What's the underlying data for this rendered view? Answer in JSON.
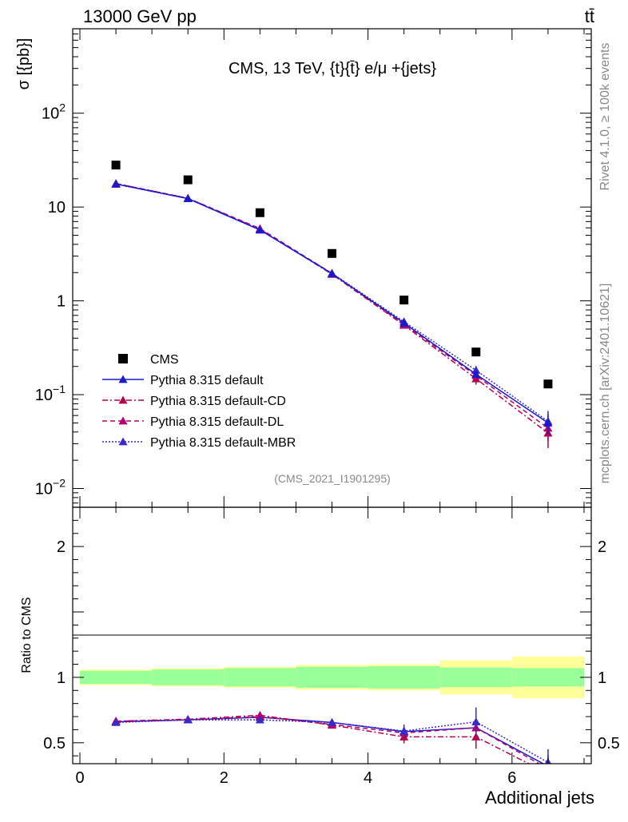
{
  "header": {
    "energy_label": "13000 GeV pp",
    "process_label": "tt̄",
    "side_rivet": "Rivet 4.1.0, ≥ 100k events",
    "side_mcplots": "mcplots.cern.ch [arXiv:2401.10621]"
  },
  "chart_data": [
    {
      "type": "line",
      "title": "CMS, 13 TeV, {t}{t̄} e/μ +{jets}",
      "analysis_id": "(CMS_2021_I1901295)",
      "ylabel": "σ [{pb}]",
      "xlabel": "Additional jets",
      "xlim": [
        -0.1,
        7.1
      ],
      "ylim_log10": [
        -2.2,
        2.9
      ],
      "yscale": "log",
      "y_ticks": [
        {
          "label": "10^-2",
          "base": "10",
          "exp": "−2",
          "value": 0.01
        },
        {
          "label": "10^-1",
          "base": "10",
          "exp": "−1",
          "value": 0.1
        },
        {
          "label": "1",
          "base": "1",
          "exp": "",
          "value": 1
        },
        {
          "label": "10",
          "base": "10",
          "exp": "",
          "value": 10
        },
        {
          "label": "10^2",
          "base": "10",
          "exp": "2",
          "value": 100
        }
      ],
      "x": [
        0.5,
        1.5,
        2.5,
        3.5,
        4.5,
        5.5,
        6.5
      ],
      "legend_position": "lower-left",
      "series": [
        {
          "name": "CMS",
          "marker": "square",
          "color": "#000000",
          "values": [
            28.0,
            19.5,
            8.7,
            3.2,
            1.02,
            0.285,
            0.13
          ]
        },
        {
          "name": "Pythia 8.315 default",
          "marker": "triangle",
          "line": "solid",
          "color": "#1a1acc",
          "values": [
            17.6,
            12.3,
            5.7,
            1.95,
            0.58,
            0.165,
            0.05
          ],
          "err": [
            0.3,
            0.2,
            0.12,
            0.05,
            0.03,
            0.015,
            0.012
          ]
        },
        {
          "name": "Pythia 8.315 default-CD",
          "marker": "triangle",
          "line": "dashdot",
          "color": "#b4004b",
          "values": [
            17.8,
            12.4,
            5.8,
            1.92,
            0.55,
            0.148,
            0.039
          ],
          "err": [
            0.3,
            0.2,
            0.12,
            0.05,
            0.03,
            0.02,
            0.012
          ]
        },
        {
          "name": "Pythia 8.315 default-DL",
          "marker": "triangle",
          "line": "dashed",
          "color": "#b4006e",
          "values": [
            17.8,
            12.4,
            5.9,
            1.96,
            0.56,
            0.16,
            0.044
          ],
          "err": [
            0.3,
            0.2,
            0.12,
            0.05,
            0.03,
            0.017,
            0.012
          ]
        },
        {
          "name": "Pythia 8.315 default-MBR",
          "marker": "triangle",
          "line": "dotted",
          "color": "#3a2acc",
          "values": [
            17.5,
            12.3,
            5.7,
            1.97,
            0.6,
            0.182,
            0.052
          ],
          "err": [
            0.3,
            0.2,
            0.12,
            0.05,
            0.03,
            0.02,
            0.015
          ]
        }
      ]
    },
    {
      "type": "line",
      "ylabel": "Ratio to CMS",
      "xlabel": "Additional jets",
      "xlim": [
        -0.1,
        7.1
      ],
      "ylim": [
        0.34,
        2.3
      ],
      "y_ticks": [
        0.5,
        1,
        2
      ],
      "x_ticks": [
        0,
        2,
        4,
        6
      ],
      "bins": [
        [
          0,
          1
        ],
        [
          1,
          2
        ],
        [
          2,
          3
        ],
        [
          3,
          4
        ],
        [
          4,
          5
        ],
        [
          5,
          6
        ],
        [
          6,
          7
        ]
      ],
      "band_inner": [
        0.05,
        0.06,
        0.07,
        0.08,
        0.085,
        0.075,
        0.07
      ],
      "band_outer": [
        0.06,
        0.07,
        0.08,
        0.095,
        0.1,
        0.13,
        0.16
      ],
      "x": [
        0.5,
        1.5,
        2.5,
        3.5,
        4.5,
        5.5,
        6.5
      ],
      "series": [
        {
          "name": "Pythia 8.315 default",
          "color": "#1a1acc",
          "line": "solid",
          "values": [
            0.66,
            0.675,
            0.695,
            0.655,
            0.585,
            0.615,
            0.32
          ],
          "err": [
            0.012,
            0.012,
            0.015,
            0.02,
            0.04,
            0.06,
            0.09
          ]
        },
        {
          "name": "Pythia 8.315 default-CD",
          "color": "#b4004b",
          "line": "dashdot",
          "values": [
            0.665,
            0.68,
            0.71,
            0.635,
            0.545,
            0.545,
            0.265
          ],
          "err": [
            0.012,
            0.012,
            0.015,
            0.025,
            0.05,
            0.09,
            0.09
          ]
        },
        {
          "name": "Pythia 8.315 default-DL",
          "color": "#b4006e",
          "line": "dashed",
          "values": [
            0.665,
            0.675,
            0.7,
            0.64,
            0.575,
            0.615,
            0.3
          ],
          "err": [
            0.012,
            0.012,
            0.015,
            0.025,
            0.045,
            0.07,
            0.09
          ]
        },
        {
          "name": "Pythia 8.315 default-MBR",
          "color": "#3a2acc",
          "line": "dotted",
          "values": [
            0.655,
            0.675,
            0.675,
            0.655,
            0.59,
            0.66,
            0.35
          ],
          "err": [
            0.012,
            0.012,
            0.015,
            0.025,
            0.05,
            0.11,
            0.1
          ]
        }
      ]
    }
  ]
}
